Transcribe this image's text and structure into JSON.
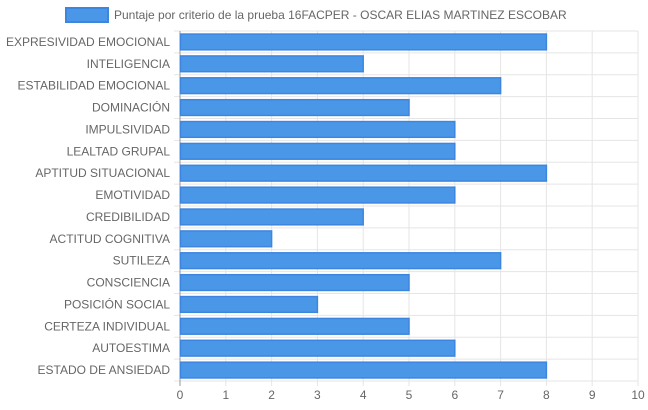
{
  "chart_data": {
    "type": "bar",
    "orientation": "horizontal",
    "categories": [
      "EXPRESIVIDAD EMOCIONAL",
      "INTELIGENCIA",
      "ESTABILIDAD EMOCIONAL",
      "DOMINACIÓN",
      "IMPULSIVIDAD",
      "LEALTAD GRUPAL",
      "APTITUD SITUACIONAL",
      "EMOTIVIDAD",
      "CREDIBILIDAD",
      "ACTITUD COGNITIVA",
      "SUTILEZA",
      "CONSCIENCIA",
      "POSICIÓN SOCIAL",
      "CERTEZA INDIVIDUAL",
      "AUTOESTIMA",
      "ESTADO DE ANSIEDAD"
    ],
    "series": [
      {
        "name": "Puntaje por criterio de la prueba 16FACPER - OSCAR ELIAS MARTINEZ ESCOBAR",
        "values": [
          8,
          4,
          7,
          5,
          6,
          6,
          8,
          6,
          4,
          2,
          7,
          5,
          3,
          5,
          6,
          8
        ]
      }
    ],
    "xlim": [
      0,
      10
    ],
    "xticks": [
      "0",
      "1",
      "2",
      "3",
      "4",
      "5",
      "6",
      "7",
      "8",
      "9",
      "10"
    ],
    "grid": true,
    "legend_position": "top",
    "colors": {
      "bar_fill": "#4a97e8",
      "bar_stroke": "#3d86e0",
      "grid": "#e5e5e5",
      "axis": "#999999",
      "text": "#666666"
    }
  }
}
